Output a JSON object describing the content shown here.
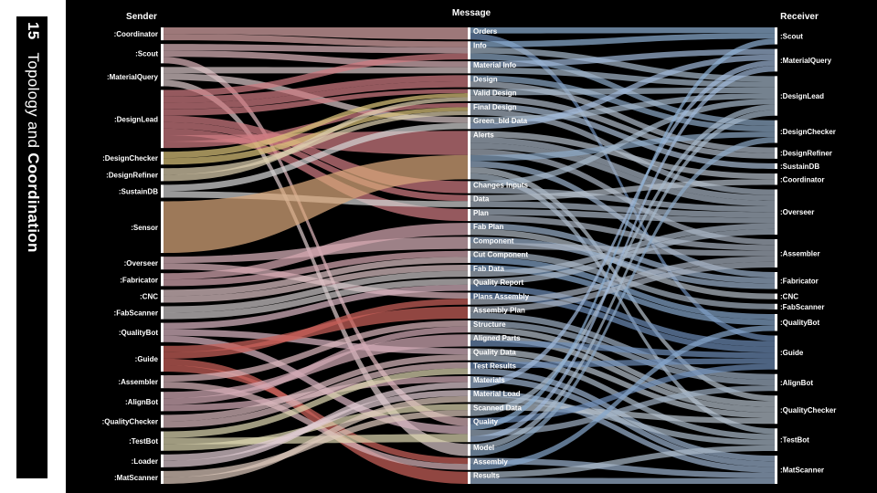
{
  "slide": {
    "number": "15",
    "title_part1": "Topology",
    "title_join": " and ",
    "title_part2": "Coordination"
  },
  "diagram": {
    "columns": {
      "sender": "Sender",
      "message": "Message",
      "receiver": "Receiver"
    },
    "senders": [
      {
        "id": "Coordinator",
        "label": ":Coordinator",
        "value": 2,
        "color": "#d9a6a8"
      },
      {
        "id": "Scout",
        "label": ":Scout",
        "value": 3,
        "color": "#d9b3b8"
      },
      {
        "id": "MaterialQuery",
        "label": ":MaterialQuery",
        "value": 3,
        "color": "#d8c6c8"
      },
      {
        "id": "DesignLead",
        "label": ":DesignLead",
        "value": 9,
        "color": "#cf7b82"
      },
      {
        "id": "DesignChecker",
        "label": ":DesignChecker",
        "value": 2,
        "color": "#d9c27a"
      },
      {
        "id": "DesignRefiner",
        "label": ":DesignRefiner",
        "value": 2,
        "color": "#dccfae"
      },
      {
        "id": "SustainDB",
        "label": ":SustainDB",
        "value": 2,
        "color": "#d4d4d4"
      },
      {
        "id": "Sensor",
        "label": ":Sensor",
        "value": 8,
        "color": "#d9a77b"
      },
      {
        "id": "Overseer",
        "label": ":Overseer",
        "value": 2,
        "color": "#d9b3bb"
      },
      {
        "id": "Fabricator",
        "label": ":Fabricator",
        "value": 2,
        "color": "#d6a8b2"
      },
      {
        "id": "CNC",
        "label": ":CNC",
        "value": 2,
        "color": "#ddc2c5"
      },
      {
        "id": "FabScanner",
        "label": ":FabScanner",
        "value": 2,
        "color": "#ccc6c8"
      },
      {
        "id": "QualityBot",
        "label": ":QualityBot",
        "value": 3,
        "color": "#d8b4c0"
      },
      {
        "id": "Guide",
        "label": ":Guide",
        "value": 4,
        "color": "#c9615a"
      },
      {
        "id": "Assembler",
        "label": ":Assembler",
        "value": 2,
        "color": "#dab6bb"
      },
      {
        "id": "AlignBot",
        "label": ":AlignBot",
        "value": 3,
        "color": "#d2aab6"
      },
      {
        "id": "QualityChecker",
        "label": ":QualityChecker",
        "value": 2,
        "color": "#d8b8bd"
      },
      {
        "id": "TestBot",
        "label": ":TestBot",
        "value": 3,
        "color": "#ddd6b0"
      },
      {
        "id": "Loader",
        "label": ":Loader",
        "value": 2,
        "color": "#e0ccd2"
      },
      {
        "id": "MatScanner",
        "label": ":MatScanner",
        "value": 2,
        "color": "#ddc8bb"
      }
    ],
    "messages": [
      {
        "id": "Orders",
        "label": "Orders",
        "value": 2
      },
      {
        "id": "Info",
        "label": "Info",
        "value": 3
      },
      {
        "id": "Material Info",
        "label": "Material Info",
        "value": 2
      },
      {
        "id": "Design",
        "label": "Design",
        "value": 2
      },
      {
        "id": "Valid Design",
        "label": "Valid Design",
        "value": 2
      },
      {
        "id": "Final Design",
        "label": "Final Design",
        "value": 2
      },
      {
        "id": "Green_bld Data",
        "label": "Green_bld Data",
        "value": 2
      },
      {
        "id": "Alerts",
        "label": "Alerts",
        "value": 8
      },
      {
        "id": "Changes Inputs",
        "label": "Changes Inputs",
        "value": 2
      },
      {
        "id": "Data",
        "label": "Data",
        "value": 2
      },
      {
        "id": "Plan",
        "label": "Plan",
        "value": 2
      },
      {
        "id": "Fab Plan",
        "label": "Fab Plan",
        "value": 2
      },
      {
        "id": "Component",
        "label": "Component",
        "value": 2
      },
      {
        "id": "Cut Component",
        "label": "Cut Component",
        "value": 2
      },
      {
        "id": "Fab Data",
        "label": "Fab Data",
        "value": 2
      },
      {
        "id": "Quality Report",
        "label": "Quality Report",
        "value": 2
      },
      {
        "id": "Plans Assembly",
        "label": "Plans Assembly",
        "value": 2
      },
      {
        "id": "Assembly Plan",
        "label": "Assembly Plan",
        "value": 2
      },
      {
        "id": "Structure",
        "label": "Structure",
        "value": 2
      },
      {
        "id": "Aligned Parts",
        "label": "Aligned Parts",
        "value": 2
      },
      {
        "id": "Quality Data",
        "label": "Quality Data",
        "value": 2
      },
      {
        "id": "Test Results",
        "label": "Test Results",
        "value": 2
      },
      {
        "id": "Materials",
        "label": "Materials",
        "value": 2
      },
      {
        "id": "Material Load",
        "label": "Material Load",
        "value": 2
      },
      {
        "id": "Scanned Data",
        "label": "Scanned Data",
        "value": 2
      },
      {
        "id": "Quality",
        "label": "Quality",
        "value": 4
      },
      {
        "id": "Model",
        "label": "Model",
        "value": 2
      },
      {
        "id": "Assembly",
        "label": "Assembly",
        "value": 2
      },
      {
        "id": "Results",
        "label": "Results",
        "value": 2
      }
    ],
    "receivers": [
      {
        "id": "Scout",
        "label": ":Scout",
        "color": "#8fb0d4"
      },
      {
        "id": "MaterialQuery",
        "label": ":MaterialQuery",
        "color": "#9fb8d8"
      },
      {
        "id": "DesignLead",
        "label": ":DesignLead",
        "color": "#a7b9cc"
      },
      {
        "id": "DesignChecker",
        "label": ":DesignChecker",
        "color": "#8da9c8"
      },
      {
        "id": "DesignRefiner",
        "label": ":DesignRefiner",
        "color": "#b1bccb"
      },
      {
        "id": "SustainDB",
        "label": ":SustainDB",
        "color": "#a9bdd6"
      },
      {
        "id": "Coordinator",
        "label": ":Coordinator",
        "color": "#b7c1cc"
      },
      {
        "id": "Overseer",
        "label": ":Overseer",
        "color": "#aab7c6"
      },
      {
        "id": "Assembler",
        "label": ":Assembler",
        "color": "#a9b4c2"
      },
      {
        "id": "Fabricator",
        "label": ":Fabricator",
        "color": "#9cb3cf"
      },
      {
        "id": "CNC",
        "label": ":CNC",
        "color": "#b4bdc8"
      },
      {
        "id": "FabScanner",
        "label": ":FabScanner",
        "color": "#a4b2c2"
      },
      {
        "id": "QualityBot",
        "label": ":QualityBot",
        "color": "#86a6cc"
      },
      {
        "id": "Guide",
        "label": ":Guide",
        "color": "#6d8db8"
      },
      {
        "id": "AlignBot",
        "label": ":AlignBot",
        "color": "#9fb0c4"
      },
      {
        "id": "QualityChecker",
        "label": ":QualityChecker",
        "color": "#b8c3cf"
      },
      {
        "id": "TestBot",
        "label": ":TestBot",
        "color": "#adbccc"
      },
      {
        "id": "MatScanner",
        "label": ":MatScanner",
        "color": "#9db4d0"
      }
    ],
    "flows_in": [
      [
        "Coordinator",
        "Orders"
      ],
      [
        "Coordinator",
        "Info"
      ],
      [
        "Scout",
        "Info"
      ],
      [
        "Scout",
        "Material Info"
      ],
      [
        "Scout",
        "Quality"
      ],
      [
        "MaterialQuery",
        "Material Info"
      ],
      [
        "MaterialQuery",
        "Green_bld Data"
      ],
      [
        "MaterialQuery",
        "Model"
      ],
      [
        "DesignLead",
        "Info"
      ],
      [
        "DesignLead",
        "Design"
      ],
      [
        "DesignLead",
        "Design"
      ],
      [
        "DesignLead",
        "Valid Design"
      ],
      [
        "DesignLead",
        "Changes Inputs"
      ],
      [
        "DesignLead",
        "Data"
      ],
      [
        "DesignLead",
        "Plan"
      ],
      [
        "DesignLead",
        "Alerts"
      ],
      [
        "DesignLead",
        "Final Design"
      ],
      [
        "DesignChecker",
        "Valid Design"
      ],
      [
        "DesignChecker",
        "Final Design"
      ],
      [
        "DesignRefiner",
        "Final Design"
      ],
      [
        "DesignRefiner",
        "Valid Design"
      ],
      [
        "SustainDB",
        "Green_bld Data"
      ],
      [
        "SustainDB",
        "Data"
      ],
      [
        "Sensor",
        "Alerts"
      ],
      [
        "Overseer",
        "Component"
      ],
      [
        "Overseer",
        "Plans Assembly"
      ],
      [
        "Fabricator",
        "Fab Plan"
      ],
      [
        "Fabricator",
        "Cut Component"
      ],
      [
        "CNC",
        "Cut Component"
      ],
      [
        "CNC",
        "Fab Data"
      ],
      [
        "FabScanner",
        "Fab Data"
      ],
      [
        "FabScanner",
        "Quality Report"
      ],
      [
        "QualityBot",
        "Quality Report"
      ],
      [
        "QualityBot",
        "Quality Data"
      ],
      [
        "QualityBot",
        "Quality"
      ],
      [
        "Guide",
        "Assembly Plan"
      ],
      [
        "Guide",
        "Plans Assembly"
      ],
      [
        "Guide",
        "Results"
      ],
      [
        "Guide",
        "Assembly"
      ],
      [
        "Assembler",
        "Structure"
      ],
      [
        "Assembler",
        "Assembly"
      ],
      [
        "AlignBot",
        "Aligned Parts"
      ],
      [
        "AlignBot",
        "Structure"
      ],
      [
        "AlignBot",
        "Materials"
      ],
      [
        "QualityChecker",
        "Quality Data"
      ],
      [
        "QualityChecker",
        "Test Results"
      ],
      [
        "TestBot",
        "Test Results"
      ],
      [
        "TestBot",
        "Quality"
      ],
      [
        "TestBot",
        "Scanned Data"
      ],
      [
        "Loader",
        "Material Load"
      ],
      [
        "Loader",
        "Materials"
      ],
      [
        "MatScanner",
        "Scanned Data"
      ],
      [
        "MatScanner",
        "Material Load"
      ]
    ],
    "flows_out": [
      [
        "Orders",
        "Scout"
      ],
      [
        "Orders",
        "Guide"
      ],
      [
        "Info",
        "Scout"
      ],
      [
        "Info",
        "DesignLead"
      ],
      [
        "Info",
        "DesignChecker"
      ],
      [
        "Material Info",
        "MaterialQuery"
      ],
      [
        "Material Info",
        "DesignLead"
      ],
      [
        "Design",
        "DesignChecker"
      ],
      [
        "Design",
        "DesignRefiner"
      ],
      [
        "Valid Design",
        "DesignLead"
      ],
      [
        "Valid Design",
        "DesignRefiner"
      ],
      [
        "Final Design",
        "SustainDB"
      ],
      [
        "Final Design",
        "Overseer"
      ],
      [
        "Green_bld Data",
        "DesignLead"
      ],
      [
        "Green_bld Data",
        "MaterialQuery"
      ],
      [
        "Alerts",
        "Coordinator"
      ],
      [
        "Alerts",
        "Overseer"
      ],
      [
        "Alerts",
        "Overseer"
      ],
      [
        "Alerts",
        "Assembler"
      ],
      [
        "Alerts",
        "DesignChecker"
      ],
      [
        "Alerts",
        "Fabricator"
      ],
      [
        "Alerts",
        "QualityChecker"
      ],
      [
        "Alerts",
        "TestBot"
      ],
      [
        "Changes Inputs",
        "DesignLead"
      ],
      [
        "Changes Inputs",
        "Overseer"
      ],
      [
        "Data",
        "Coordinator"
      ],
      [
        "Data",
        "Overseer"
      ],
      [
        "Plan",
        "Overseer"
      ],
      [
        "Plan",
        "Assembler"
      ],
      [
        "Fab Plan",
        "Fabricator"
      ],
      [
        "Fab Plan",
        "CNC"
      ],
      [
        "Component",
        "Fabricator"
      ],
      [
        "Component",
        "Assembler"
      ],
      [
        "Cut Component",
        "FabScanner"
      ],
      [
        "Cut Component",
        "QualityBot"
      ],
      [
        "Fab Data",
        "QualityBot"
      ],
      [
        "Fab Data",
        "Overseer"
      ],
      [
        "Quality Report",
        "Overseer"
      ],
      [
        "Quality Report",
        "Guide"
      ],
      [
        "Plans Assembly",
        "Guide"
      ],
      [
        "Plans Assembly",
        "Assembler"
      ],
      [
        "Assembly Plan",
        "Assembler"
      ],
      [
        "Assembly Plan",
        "AlignBot"
      ],
      [
        "Structure",
        "AlignBot"
      ],
      [
        "Structure",
        "QualityChecker"
      ],
      [
        "Aligned Parts",
        "QualityChecker"
      ],
      [
        "Aligned Parts",
        "Guide"
      ],
      [
        "Quality Data",
        "QualityChecker"
      ],
      [
        "Quality Data",
        "TestBot"
      ],
      [
        "Test Results",
        "Guide"
      ],
      [
        "Test Results",
        "MatScanner"
      ],
      [
        "Materials",
        "MatScanner"
      ],
      [
        "Materials",
        "MaterialQuery"
      ],
      [
        "Material Load",
        "MatScanner"
      ],
      [
        "Material Load",
        "TestBot"
      ],
      [
        "Scanned Data",
        "QualityChecker"
      ],
      [
        "Scanned Data",
        "DesignLead"
      ],
      [
        "Quality",
        "Guide"
      ],
      [
        "Quality",
        "Scout"
      ],
      [
        "Quality",
        "AlignBot"
      ],
      [
        "Quality",
        "MaterialQuery"
      ],
      [
        "Model",
        "DesignLead"
      ],
      [
        "Model",
        "DesignChecker"
      ],
      [
        "Assembly",
        "MatScanner"
      ],
      [
        "Assembly",
        "QualityBot"
      ],
      [
        "Results",
        "TestBot"
      ],
      [
        "Results",
        "MatScanner"
      ]
    ]
  }
}
